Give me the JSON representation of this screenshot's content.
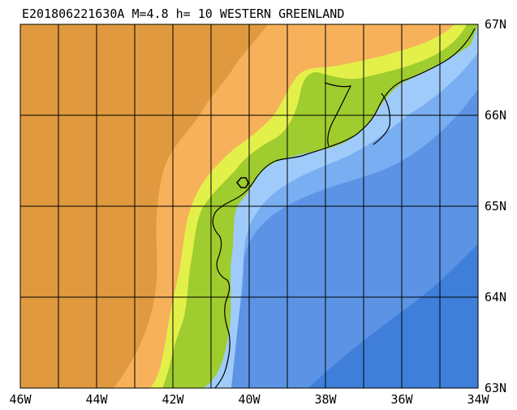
{
  "title": "E201806221630A M=4.8 h= 10 WESTERN GREENLAND",
  "lat_labels": [
    "67N",
    "66N",
    "65N",
    "64N",
    "63N"
  ],
  "lon_labels": [
    "46W",
    "44W",
    "42W",
    "40W",
    "38W",
    "36W",
    "34W"
  ],
  "colors": {
    "land_high": "#e0993e",
    "land_low": "#f6b15a",
    "coast_yellow": "#e4f04a",
    "coast_green": "#9fcc2e",
    "shelf_light": "#9fcbfa",
    "shelf_mid": "#7aaef2",
    "deep": "#5c93e4",
    "deepest": "#3f7fd9",
    "grid": "#000000"
  },
  "epicenter": {
    "symbol": "hexagon-outline",
    "lon": -40.4,
    "lat": 65.25
  }
}
